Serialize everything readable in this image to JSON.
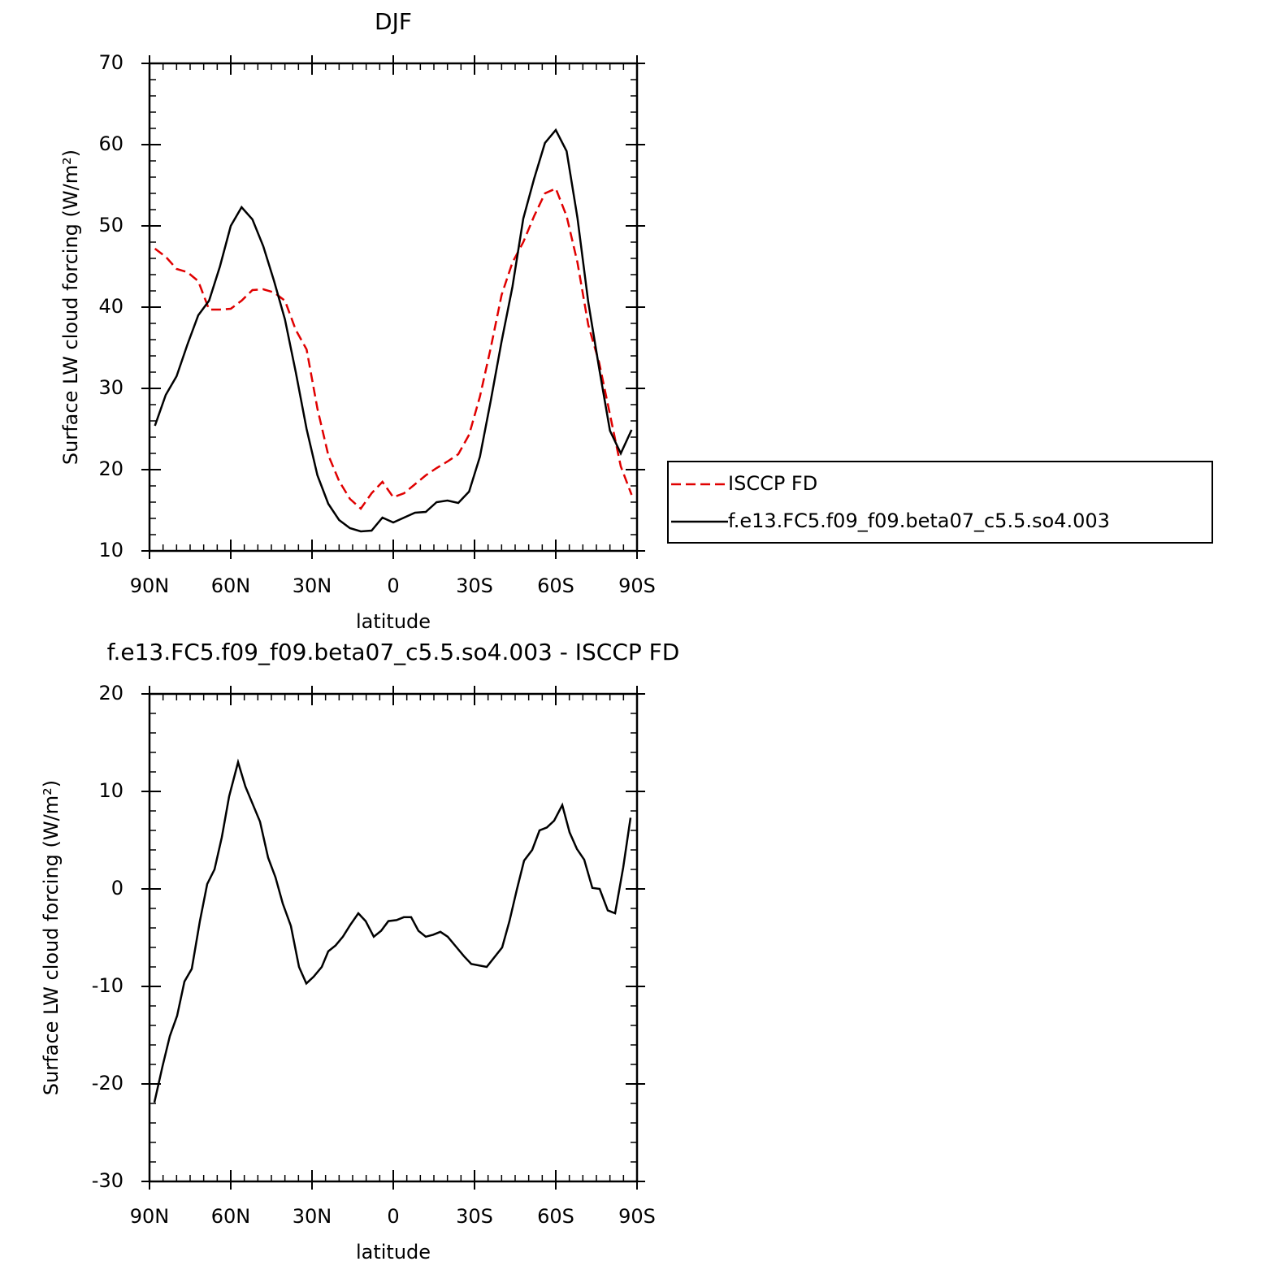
{
  "chart_data": [
    {
      "type": "line",
      "title": "DJF",
      "xlabel": "latitude",
      "ylabel": "Surface LW cloud forcing (W/m²)",
      "x": [
        88,
        84,
        80,
        76,
        72,
        68,
        64,
        60,
        56,
        52,
        48,
        44,
        40,
        36,
        32,
        28,
        24,
        20,
        16,
        12,
        8,
        4,
        0,
        -4,
        -8,
        -12,
        -16,
        -20,
        -24,
        -28,
        -32,
        -36,
        -40,
        -44,
        -48,
        -52,
        -56,
        -60,
        -64,
        -68,
        -72,
        -76,
        -80,
        -84,
        -88
      ],
      "series": [
        {
          "name": "ISCCP FD",
          "color": "#e00000",
          "dash": "dashed",
          "values": [
            47.2,
            46.2,
            44.7,
            44.3,
            43.2,
            39.7,
            39.7,
            39.8,
            40.8,
            42.1,
            42.2,
            41.8,
            40.8,
            37.2,
            34.8,
            27.5,
            21.8,
            18.6,
            16.4,
            15.2,
            17.1,
            18.5,
            16.6,
            17.1,
            18.2,
            19.3,
            20.2,
            21.0,
            21.9,
            24.3,
            29.0,
            35.0,
            41.5,
            45.5,
            48.0,
            51.2,
            54.0,
            54.6,
            51.2,
            45.5,
            37.8,
            33.2,
            26.8,
            20.4,
            16.9
          ]
        },
        {
          "name": "f.e13.FC5.f09_f09.beta07_c5.5.so4.003",
          "color": "#000000",
          "dash": "solid",
          "values": [
            25.4,
            29.2,
            31.5,
            35.4,
            39.0,
            40.8,
            45.0,
            50.0,
            52.3,
            50.8,
            47.5,
            43.2,
            38.5,
            32.0,
            25.0,
            19.3,
            15.8,
            13.8,
            12.8,
            12.4,
            12.5,
            14.1,
            13.5,
            14.1,
            14.7,
            14.8,
            16.0,
            16.2,
            15.9,
            17.3,
            21.6,
            28.5,
            35.8,
            42.5,
            50.9,
            55.8,
            60.2,
            61.8,
            59.2,
            51.0,
            40.6,
            32.5,
            24.8,
            22.0,
            24.9
          ]
        }
      ],
      "xlim": [
        90,
        -90
      ],
      "xticks": [
        {
          "value": 90,
          "label": "90N"
        },
        {
          "value": 60,
          "label": "60N"
        },
        {
          "value": 30,
          "label": "30N"
        },
        0,
        {
          "value": -30,
          "label": "30S"
        },
        {
          "value": -60,
          "label": "60S"
        },
        {
          "value": -90,
          "label": "90S"
        }
      ],
      "ylim": [
        10,
        70
      ],
      "yticks": [
        10,
        20,
        30,
        40,
        50,
        60,
        70
      ],
      "x_minor_per_major": 6,
      "y_minor_per_major": 5,
      "legend": "right"
    },
    {
      "type": "line",
      "title": "f.e13.FC5.f09_f09.beta07_c5.5.so4.003 - ISCCP FD",
      "xlabel": "latitude",
      "ylabel": "Surface LW cloud forcing (W/m²)",
      "x": [
        88.2,
        85.2,
        82.5,
        79.8,
        77.1,
        74.4,
        71.4,
        68.7,
        66,
        63.3,
        60.6,
        57.3,
        54.6,
        49.2,
        46.2,
        43.5,
        40.8,
        37.8,
        34.8,
        32.1,
        29.4,
        26.4,
        24,
        21.3,
        18.6,
        15.9,
        12.9,
        10.2,
        7.2,
        4.5,
        1.8,
        -1.2,
        -3.9,
        -6.6,
        -9.3,
        -12,
        -14.7,
        -17.4,
        -20.1,
        -23.4,
        -26.1,
        -28.8,
        -34.5,
        -40.2,
        -42.9,
        -45.6,
        -48.3,
        -51.3,
        -54,
        -56.7,
        -59.4,
        -62.4,
        -65.1,
        -67.8,
        -70.5,
        -73.5,
        -76.2,
        -79.2,
        -81.9,
        -84.9,
        -87.6
      ],
      "color": "#000000",
      "values": [
        -21.9,
        -18.2,
        -15.1,
        -13,
        -9.5,
        -8.2,
        -3.3,
        0.5,
        2,
        5.3,
        9.5,
        13,
        10.5,
        6.9,
        3.2,
        1.2,
        -1.5,
        -3.8,
        -8,
        -9.7,
        -9,
        -8,
        -6.4,
        -5.8,
        -4.9,
        -3.7,
        -2.5,
        -3.3,
        -4.9,
        -4.3,
        -3.3,
        -3.2,
        -2.9,
        -2.9,
        -4.3,
        -4.9,
        -4.7,
        -4.4,
        -4.9,
        -6,
        -6.9,
        -7.7,
        -8,
        -6,
        -3.3,
        -0.1,
        2.9,
        4,
        6,
        6.3,
        7,
        8.6,
        5.8,
        4.1,
        3,
        0.1,
        0,
        -2.2,
        -2.5,
        2.2,
        7.3
      ],
      "xlim": [
        90,
        -90
      ],
      "xticks": [
        {
          "value": 90,
          "label": "90N"
        },
        {
          "value": 60,
          "label": "60N"
        },
        {
          "value": 30,
          "label": "30N"
        },
        0,
        {
          "value": -30,
          "label": "30S"
        },
        {
          "value": -60,
          "label": "60S"
        },
        {
          "value": -90,
          "label": "90S"
        }
      ],
      "ylim": [
        -30,
        20
      ],
      "yticks": [
        -30,
        -20,
        -10,
        0,
        10,
        20
      ],
      "x_minor_per_major": 6,
      "y_minor_per_major": 5
    }
  ]
}
